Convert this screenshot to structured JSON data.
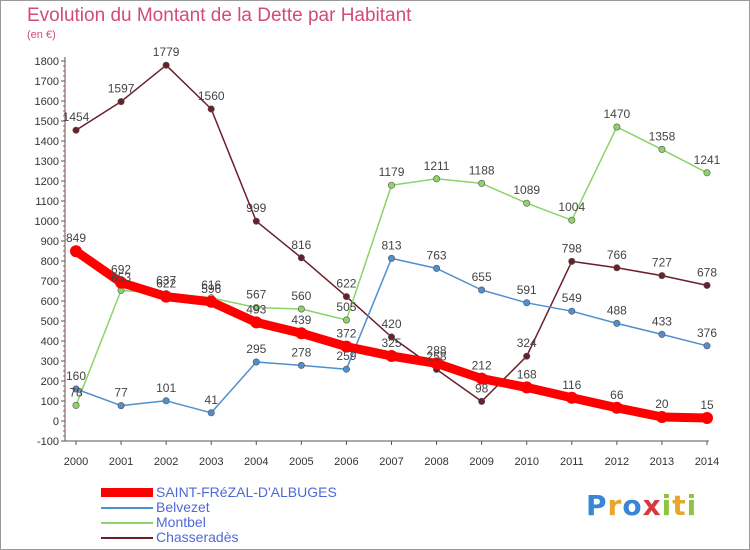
{
  "chart_data": {
    "type": "line",
    "title": "Evolution du Montant de la Dette par Habitant",
    "subtitle": "(en €)",
    "xlabel": "",
    "ylabel": "",
    "categories": [
      "2000",
      "2001",
      "2002",
      "2003",
      "2004",
      "2005",
      "2006",
      "2007",
      "2008",
      "2009",
      "2010",
      "2011",
      "2012",
      "2013",
      "2014"
    ],
    "ylim": [
      -100,
      1800
    ],
    "yticks": [
      -100,
      0,
      100,
      200,
      300,
      400,
      500,
      600,
      700,
      800,
      900,
      1000,
      1100,
      1200,
      1300,
      1400,
      1500,
      1600,
      1700,
      1800
    ],
    "grid": false,
    "legend_position": "bottom-left",
    "series": [
      {
        "name": "SAINT-FRéZAL-D'ALBUGES",
        "color": "#ff0000",
        "values": [
          849,
          692,
          622,
          596,
          493,
          439,
          372,
          325,
          288,
          212,
          168,
          116,
          66,
          20,
          15
        ]
      },
      {
        "name": "Belvezet",
        "color": "#4f8fce",
        "values": [
          160,
          77,
          101,
          41,
          295,
          278,
          259,
          813,
          763,
          655,
          591,
          549,
          488,
          433,
          376
        ]
      },
      {
        "name": "Montbel",
        "color": "#8cd36a",
        "values": [
          78,
          653,
          637,
          616,
          567,
          560,
          505,
          1179,
          1211,
          1188,
          1089,
          1004,
          1470,
          1358,
          1241
        ]
      },
      {
        "name": "Chasseradès",
        "color": "#6b1f2a",
        "values": [
          1454,
          1597,
          1779,
          1560,
          999,
          816,
          622,
          420,
          258,
          98,
          324,
          798,
          766,
          727,
          678
        ]
      }
    ]
  },
  "logo": {
    "letters": [
      "P",
      "r",
      "o",
      "x",
      "i",
      "t",
      "i"
    ],
    "colors": [
      "#3a86d4",
      "#e8a62a",
      "#3a86d4",
      "#d43a3a",
      "#8cc63f",
      "#e8a62a",
      "#8cc63f"
    ]
  }
}
